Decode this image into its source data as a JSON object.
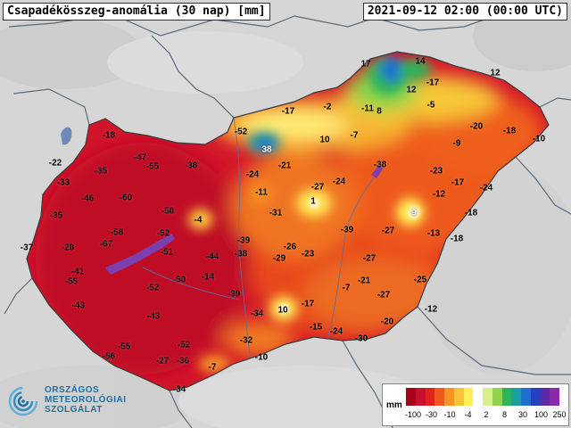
{
  "header": {
    "title": "Csapadékösszeg-anomália (30 nap) [mm]",
    "datetime": "2021-09-12 02:00 (00:00 UTC)"
  },
  "map": {
    "labels": [
      {
        "value": "17"
      },
      {
        "value": "14"
      },
      {
        "value": "12"
      },
      {
        "value": "12"
      },
      {
        "value": "-17"
      },
      {
        "value": "-5"
      },
      {
        "value": "-17"
      },
      {
        "value": "-2"
      },
      {
        "value": "-11"
      },
      {
        "value": "8"
      },
      {
        "value": "-52"
      },
      {
        "value": "38"
      },
      {
        "value": "10"
      },
      {
        "value": "-7"
      },
      {
        "value": "-20"
      },
      {
        "value": "-18"
      },
      {
        "value": "-10"
      },
      {
        "value": "-9"
      },
      {
        "value": "-18"
      },
      {
        "value": "-22"
      },
      {
        "value": "-47"
      },
      {
        "value": "-55"
      },
      {
        "value": "-38"
      },
      {
        "value": "-21"
      },
      {
        "value": "-38"
      },
      {
        "value": "-23"
      },
      {
        "value": "-33"
      },
      {
        "value": "-35"
      },
      {
        "value": "-24"
      },
      {
        "value": "-27"
      },
      {
        "value": "-24"
      },
      {
        "value": "-17"
      },
      {
        "value": "-24"
      },
      {
        "value": "-46"
      },
      {
        "value": "-60"
      },
      {
        "value": "-11"
      },
      {
        "value": "1"
      },
      {
        "value": "-12"
      },
      {
        "value": "-35"
      },
      {
        "value": "-58"
      },
      {
        "value": "-4"
      },
      {
        "value": "-31"
      },
      {
        "value": "9"
      },
      {
        "value": "-18"
      },
      {
        "value": "-58"
      },
      {
        "value": "-52"
      },
      {
        "value": "-39"
      },
      {
        "value": "-27"
      },
      {
        "value": "-13"
      },
      {
        "value": "-18"
      },
      {
        "value": "-37"
      },
      {
        "value": "-28"
      },
      {
        "value": "-67"
      },
      {
        "value": "-39"
      },
      {
        "value": "-26"
      },
      {
        "value": "-51"
      },
      {
        "value": "-44"
      },
      {
        "value": "-38"
      },
      {
        "value": "-29"
      },
      {
        "value": "-23"
      },
      {
        "value": "-27"
      },
      {
        "value": "-41"
      },
      {
        "value": "-55"
      },
      {
        "value": "-50"
      },
      {
        "value": "-14"
      },
      {
        "value": "-52"
      },
      {
        "value": "-39"
      },
      {
        "value": "-21"
      },
      {
        "value": "-25"
      },
      {
        "value": "-7"
      },
      {
        "value": "-27"
      },
      {
        "value": "-43"
      },
      {
        "value": "-17"
      },
      {
        "value": "-12"
      },
      {
        "value": "-34"
      },
      {
        "value": "10"
      },
      {
        "value": "-43"
      },
      {
        "value": "-15"
      },
      {
        "value": "-24"
      },
      {
        "value": "-20"
      },
      {
        "value": "-55"
      },
      {
        "value": "-52"
      },
      {
        "value": "-32"
      },
      {
        "value": "-30"
      },
      {
        "value": "-56"
      },
      {
        "value": "-27"
      },
      {
        "value": "-36"
      },
      {
        "value": "-10"
      },
      {
        "value": "-7"
      },
      {
        "value": "-34"
      }
    ]
  },
  "legend": {
    "unit": "mm",
    "ticks": [
      "-100",
      "-30",
      "-10",
      "-4",
      "2",
      "8",
      "30",
      "100",
      "250"
    ],
    "colors": [
      "#a3001a",
      "#c8102e",
      "#e2231a",
      "#ee5a1c",
      "#f59325",
      "#f9c23c",
      "#ffee55",
      "#ffffff",
      "#d8f08a",
      "#8fd44a",
      "#2db45a",
      "#1aa0a0",
      "#1e6fd0",
      "#2a3fbf",
      "#5a2aa8",
      "#8a2aa8"
    ]
  },
  "logo": {
    "line1": "ORSZÁGOS",
    "line2": "METEOROLÓGIAI",
    "line3": "SZOLGÁLAT",
    "color": "#1a6fa3"
  },
  "colors": {
    "background": "#d8d8d8",
    "dry_extreme": "#c8102e",
    "dry": "#e2231a",
    "moderate": "#f59325",
    "near_normal": "#ffee55",
    "wet": "#2db45a",
    "very_wet": "#1e6fd0",
    "water": "#7b3fb0"
  }
}
